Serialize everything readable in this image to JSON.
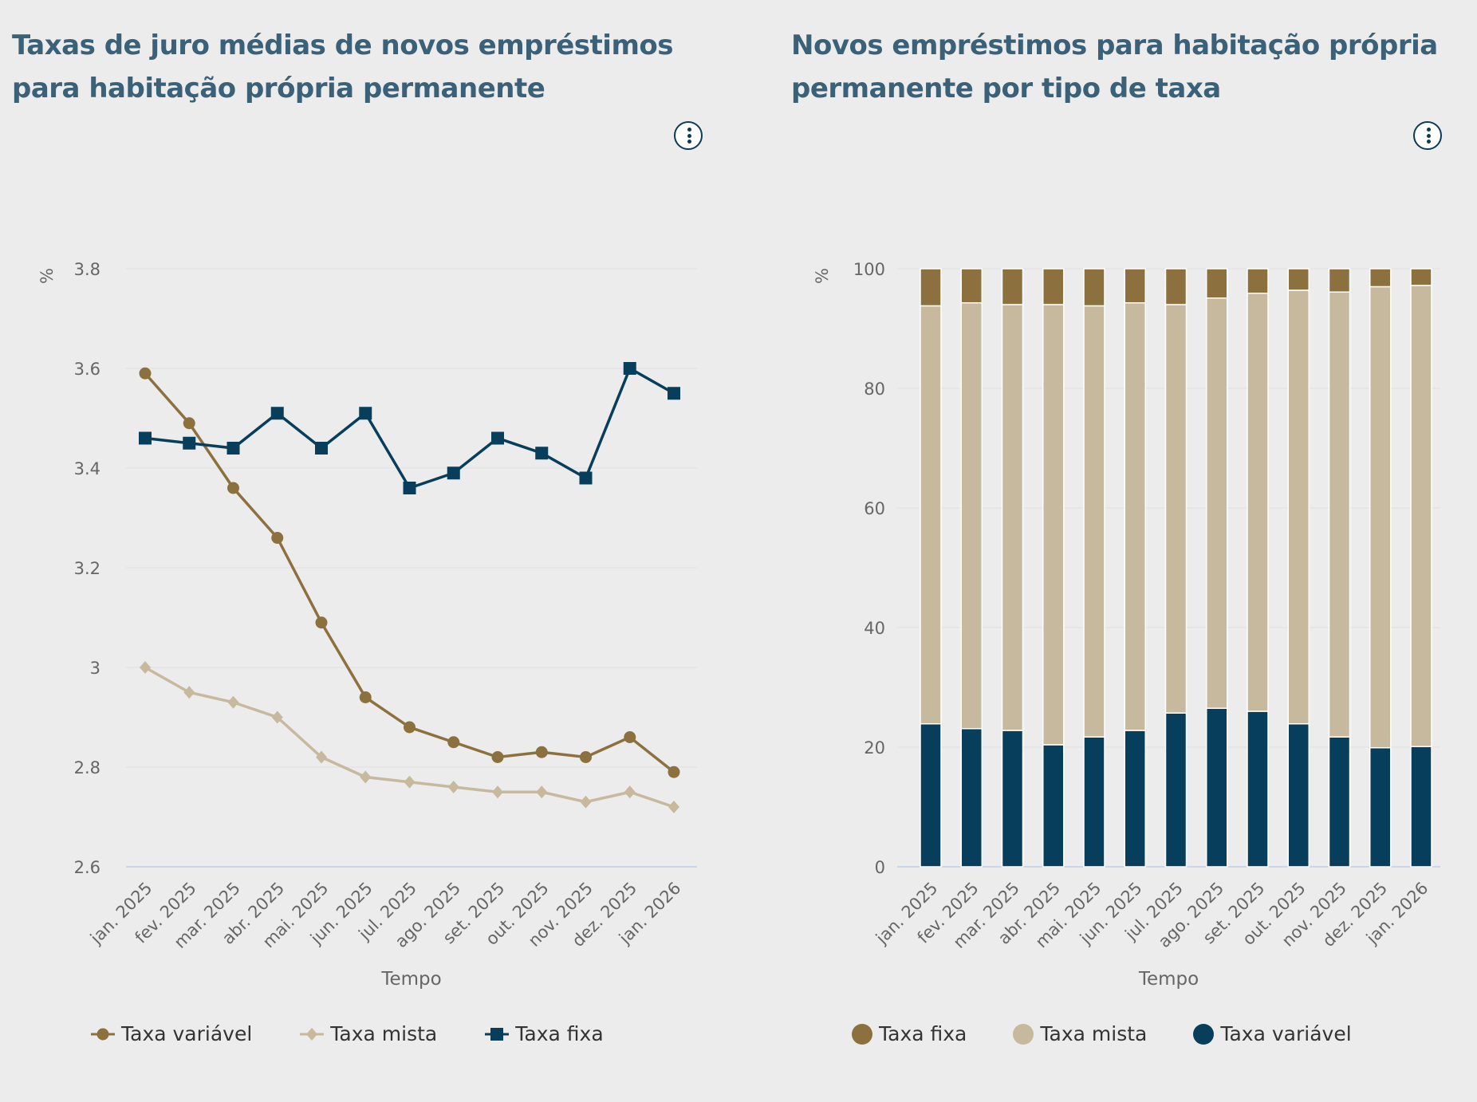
{
  "charts_meta": {
    "left": {
      "title": "Taxas de juro médias de novos empréstimos para habitação própria permanente",
      "menu_icon": "vertical-dots-icon"
    },
    "right": {
      "title": "Novos empréstimos para habitação própria permanente por tipo de taxa",
      "menu_icon": "vertical-dots-icon"
    }
  },
  "chart_data": [
    {
      "type": "line",
      "title": "Taxas de juro médias de novos empréstimos para habitação própria permanente",
      "xlabel": "Tempo",
      "ylabel": "%",
      "ylim": [
        2.6,
        3.8
      ],
      "yticks": [
        "2.6",
        "2.8",
        "3",
        "3.2",
        "3.4",
        "3.6",
        "3.8"
      ],
      "grid": true,
      "legend_position": "bottom",
      "categories": [
        "jan. 2025",
        "fev. 2025",
        "mar. 2025",
        "abr. 2025",
        "mai. 2025",
        "jun. 2025",
        "jul. 2025",
        "ago. 2025",
        "set. 2025",
        "out. 2025",
        "nov. 2025",
        "dez. 2025",
        "jan. 2026"
      ],
      "series": [
        {
          "name": "Taxa variável",
          "color": "#8c713f",
          "marker": "circle",
          "values": [
            3.59,
            3.49,
            3.36,
            3.26,
            3.09,
            2.94,
            2.88,
            2.85,
            2.82,
            2.83,
            2.82,
            2.86,
            2.79
          ]
        },
        {
          "name": "Taxa mista",
          "color": "#c7b99d",
          "marker": "diamond",
          "values": [
            3.0,
            2.95,
            2.93,
            2.9,
            2.82,
            2.78,
            2.77,
            2.76,
            2.75,
            2.75,
            2.73,
            2.75,
            2.72
          ]
        },
        {
          "name": "Taxa fixa",
          "color": "#063e5b",
          "marker": "square",
          "values": [
            3.46,
            3.45,
            3.44,
            3.51,
            3.44,
            3.51,
            3.36,
            3.39,
            3.46,
            3.43,
            3.38,
            3.6,
            3.55
          ]
        }
      ]
    },
    {
      "type": "bar",
      "stacked": true,
      "title": "Novos empréstimos para habitação própria permanente por tipo de taxa",
      "xlabel": "Tempo",
      "ylabel": "%",
      "ylim": [
        0,
        100
      ],
      "yticks": [
        "0",
        "20",
        "40",
        "60",
        "80",
        "100"
      ],
      "grid": true,
      "legend_position": "bottom",
      "categories": [
        "jan. 2025",
        "fev. 2025",
        "mar. 2025",
        "abr. 2025",
        "mai. 2025",
        "jun. 2025",
        "jul. 2025",
        "ago. 2025",
        "set. 2025",
        "out. 2025",
        "nov. 2025",
        "dez. 2025",
        "jan. 2026"
      ],
      "series": [
        {
          "name": "Taxa fixa",
          "color": "#8c713f",
          "values": [
            6.2,
            5.7,
            6.0,
            6.0,
            6.2,
            5.7,
            6.0,
            4.9,
            4.1,
            3.6,
            3.9,
            3.0,
            2.8
          ]
        },
        {
          "name": "Taxa mista",
          "color": "#c7b99d",
          "values": [
            69.9,
            71.2,
            71.2,
            73.6,
            72.1,
            71.5,
            68.3,
            68.6,
            69.9,
            72.5,
            74.4,
            77.1,
            77.1
          ]
        },
        {
          "name": "Taxa variável",
          "color": "#063e5b",
          "values": [
            23.9,
            23.1,
            22.8,
            20.4,
            21.7,
            22.8,
            25.7,
            26.5,
            26.0,
            23.9,
            21.7,
            19.9,
            20.1
          ]
        }
      ],
      "stack_order_bottom_to_top": [
        "Taxa variável",
        "Taxa mista",
        "Taxa fixa"
      ]
    }
  ]
}
